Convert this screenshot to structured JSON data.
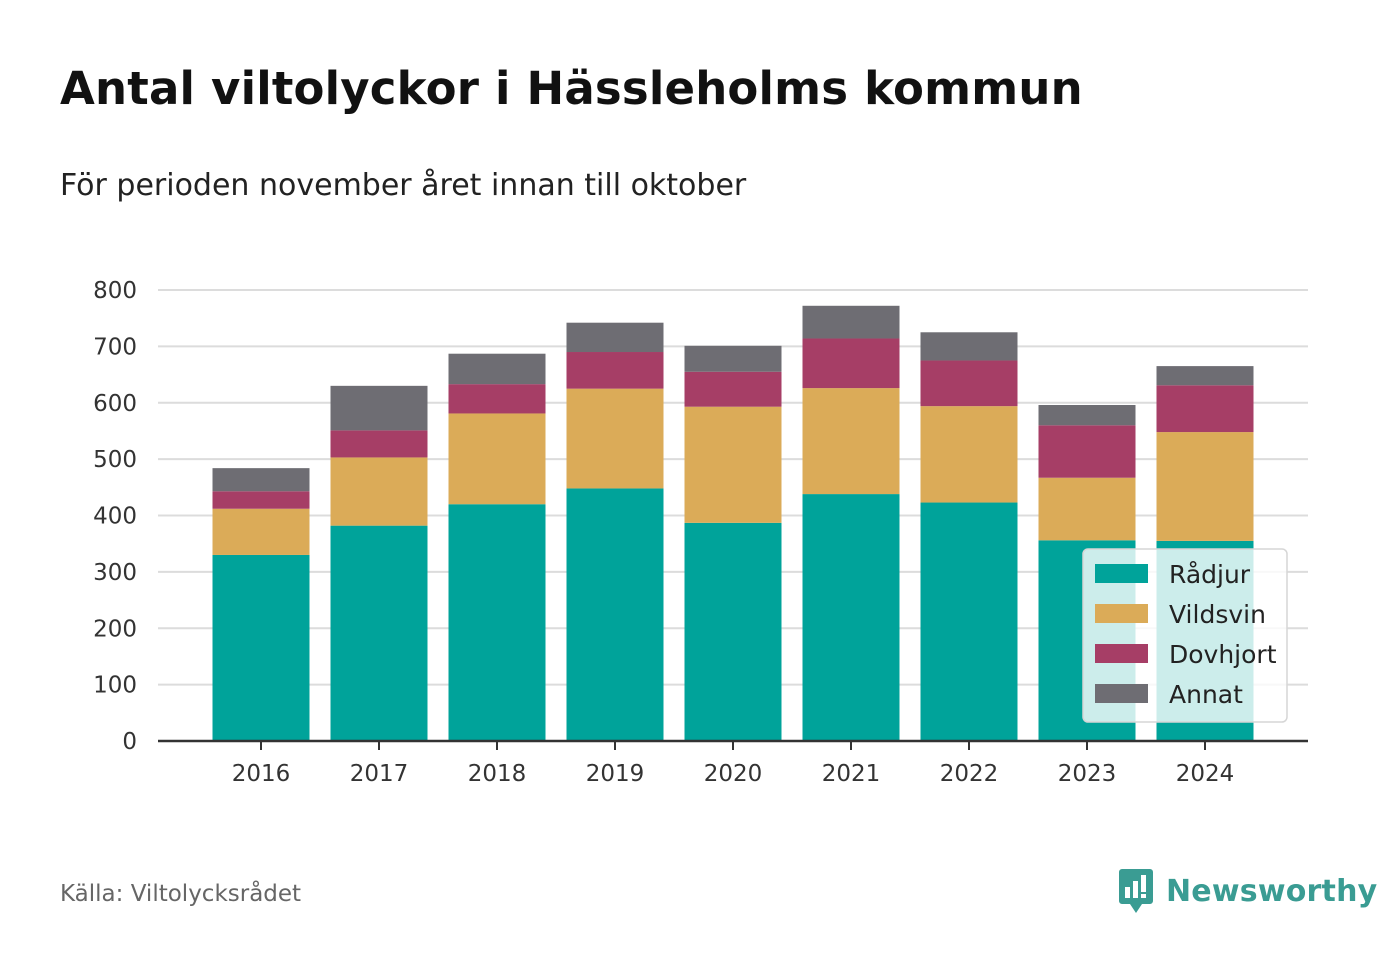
{
  "title": "Antal viltolyckor i Hässleholms kommun",
  "subtitle": "För perioden november året innan till oktober",
  "source": "Källa: Viltolycksrådet",
  "brand": "Newsworthy",
  "colors": {
    "Rådjur": "#00a39a",
    "Vildsvin": "#dbab58",
    "Dovhjort": "#a63e66",
    "Annat": "#6e6d73",
    "brand": "#3a9c93"
  },
  "chart_data": {
    "type": "bar",
    "stacked": true,
    "categories": [
      "2016",
      "2017",
      "2018",
      "2019",
      "2020",
      "2021",
      "2022",
      "2023",
      "2024"
    ],
    "series": [
      {
        "name": "Rådjur",
        "values": [
          330,
          382,
          420,
          448,
          387,
          438,
          423,
          356,
          355
        ]
      },
      {
        "name": "Vildsvin",
        "values": [
          82,
          121,
          161,
          177,
          206,
          188,
          171,
          111,
          193
        ]
      },
      {
        "name": "Dovhjort",
        "values": [
          31,
          48,
          52,
          65,
          62,
          88,
          81,
          93,
          83
        ]
      },
      {
        "name": "Annat",
        "values": [
          41,
          79,
          54,
          52,
          46,
          58,
          50,
          36,
          34
        ]
      }
    ],
    "ylim": [
      0,
      800
    ],
    "yticks": [
      0,
      100,
      200,
      300,
      400,
      500,
      600,
      700,
      800
    ],
    "grid": true,
    "legend": "bottom-right"
  }
}
